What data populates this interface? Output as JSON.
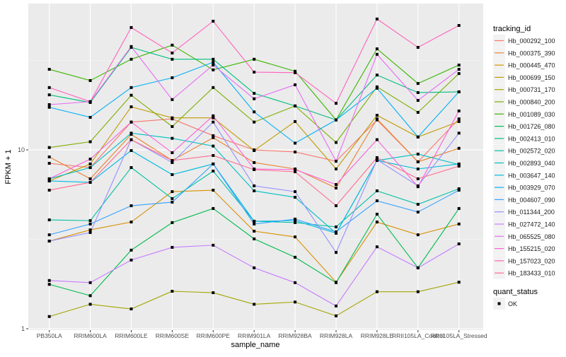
{
  "chart_data": {
    "type": "line",
    "xlabel": "sample_name",
    "ylabel": "FPKM + 1",
    "y_scale": "log10",
    "ylim": [
      1,
      66
    ],
    "y_ticks": [
      1,
      10
    ],
    "y_tick_labels": [
      "1",
      "10"
    ],
    "grid": true,
    "legend_position": "right",
    "categories": [
      "PB350LA",
      "RRIM600LA",
      "RRIM600LE",
      "RRIM600SE",
      "RRIM600PE",
      "RRIM901LA",
      "RRIM928BA",
      "RRIM928LA",
      "RRIM928LE",
      "RRII105LA_Control",
      "RRII105LA_Stressed"
    ],
    "color_legend_title": "tracking_id",
    "shape_legend_title": "quant_status",
    "shape_legend_items": [
      "OK"
    ],
    "series": [
      {
        "name": "Hb_000292_100",
        "color": "#F8766D",
        "values": [
          8.41,
          7.96,
          14.3,
          14.9,
          12.0,
          10.0,
          9.73,
          8.64,
          14.7,
          8.57,
          14.9
        ]
      },
      {
        "name": "Hb_000375_390",
        "color": "#EA8331",
        "values": [
          9.13,
          6.89,
          12.2,
          8.72,
          11.7,
          8.49,
          7.82,
          6.12,
          14.9,
          8.57,
          10.2
        ]
      },
      {
        "name": "Hb_000445_470",
        "color": "#D89000",
        "values": [
          3.09,
          3.57,
          3.95,
          5.84,
          5.95,
          3.51,
          3.26,
          1.82,
          3.95,
          3.35,
          3.85
        ]
      },
      {
        "name": "Hb_000699_150",
        "color": "#C09B00",
        "values": [
          6.7,
          8.34,
          17.4,
          15.1,
          15.1,
          9.91,
          14.4,
          7.82,
          15.6,
          11.8,
          14.4
        ]
      },
      {
        "name": "Hb_000731_170",
        "color": "#A3A500",
        "values": [
          1.17,
          1.37,
          1.29,
          1.62,
          1.59,
          1.37,
          1.41,
          1.18,
          1.61,
          1.61,
          1.82
        ]
      },
      {
        "name": "Hb_000840_200",
        "color": "#7CAE00",
        "values": [
          10.3,
          11.1,
          20.2,
          13.5,
          22.3,
          14.3,
          17.6,
          11.0,
          22.5,
          16.2,
          26.7
        ]
      },
      {
        "name": "Hb_001089_030",
        "color": "#39B600",
        "values": [
          28.2,
          24.4,
          32.1,
          38.5,
          28.0,
          32.1,
          27.5,
          14.7,
          36.7,
          23.5,
          29.8
        ]
      },
      {
        "name": "Hb_001726_080",
        "color": "#00BB4E",
        "values": [
          1.77,
          1.53,
          2.75,
          3.92,
          4.7,
          3.18,
          2.51,
          1.81,
          4.37,
          2.19,
          4.7
        ]
      },
      {
        "name": "Hb_002413_010",
        "color": "#00BF7D",
        "values": [
          20.3,
          18.4,
          37.4,
          32.1,
          32.1,
          20.7,
          17.6,
          14.7,
          26.2,
          20.9,
          21.1
        ]
      },
      {
        "name": "Hb_002572_020",
        "color": "#00C1A3",
        "values": [
          4.06,
          4.02,
          7.96,
          5.34,
          7.61,
          3.99,
          3.92,
          3.71,
          5.9,
          4.96,
          6.06
        ]
      },
      {
        "name": "Hb_002893_040",
        "color": "#00BFC4",
        "values": [
          6.89,
          7.96,
          12.4,
          11.6,
          10.5,
          5.9,
          5.43,
          3.42,
          8.72,
          9.47,
          8.27
        ]
      },
      {
        "name": "Hb_003647_140",
        "color": "#00BAE0",
        "values": [
          6.7,
          6.58,
          9.91,
          7.27,
          8.34,
          3.99,
          4.02,
          3.42,
          8.72,
          7.82,
          8.34
        ]
      },
      {
        "name": "Hb_003929_070",
        "color": "#00B0F6",
        "values": [
          17.3,
          15.2,
          22.3,
          25.3,
          30.9,
          16.3,
          10.9,
          14.7,
          22.1,
          11.8,
          21.1
        ]
      },
      {
        "name": "Hb_004607_090",
        "color": "#35A2FF",
        "values": [
          3.35,
          3.85,
          4.87,
          5.1,
          8.34,
          3.85,
          4.1,
          3.48,
          5.19,
          4.49,
          5.95
        ]
      },
      {
        "name": "Hb_011344_200",
        "color": "#9590FF",
        "values": [
          3.09,
          3.45,
          11.4,
          8.49,
          14.3,
          6.29,
          5.84,
          2.67,
          8.81,
          6.29,
          12.4
        ]
      },
      {
        "name": "Hb_027472_140",
        "color": "#C77CFF",
        "values": [
          1.86,
          1.81,
          2.42,
          2.85,
          2.93,
          2.19,
          1.81,
          1.34,
          2.87,
          2.19,
          2.98
        ]
      },
      {
        "name": "Hb_065525_080",
        "color": "#E76BF3",
        "values": [
          17.9,
          18.6,
          37.8,
          19.1,
          29.8,
          19.3,
          23.1,
          8.64,
          34.2,
          18.9,
          28.2
        ]
      },
      {
        "name": "Hb_155215_020",
        "color": "#FA62DB",
        "values": [
          6.89,
          8.88,
          14.3,
          9.64,
          15.5,
          7.82,
          7.75,
          6.4,
          11.4,
          6.22,
          16.5
        ]
      },
      {
        "name": "Hb_157023_020",
        "color": "#FF62BC",
        "values": [
          22.3,
          18.6,
          48.3,
          34.8,
          52.4,
          27.2,
          27.0,
          18.2,
          53.9,
          37.4,
          49.6
        ]
      },
      {
        "name": "Hb_183433_010",
        "color": "#FF6C91",
        "values": [
          5.95,
          6.58,
          11.4,
          8.72,
          9.3,
          7.75,
          7.54,
          4.87,
          9.05,
          6.89,
          8.11
        ]
      }
    ]
  }
}
